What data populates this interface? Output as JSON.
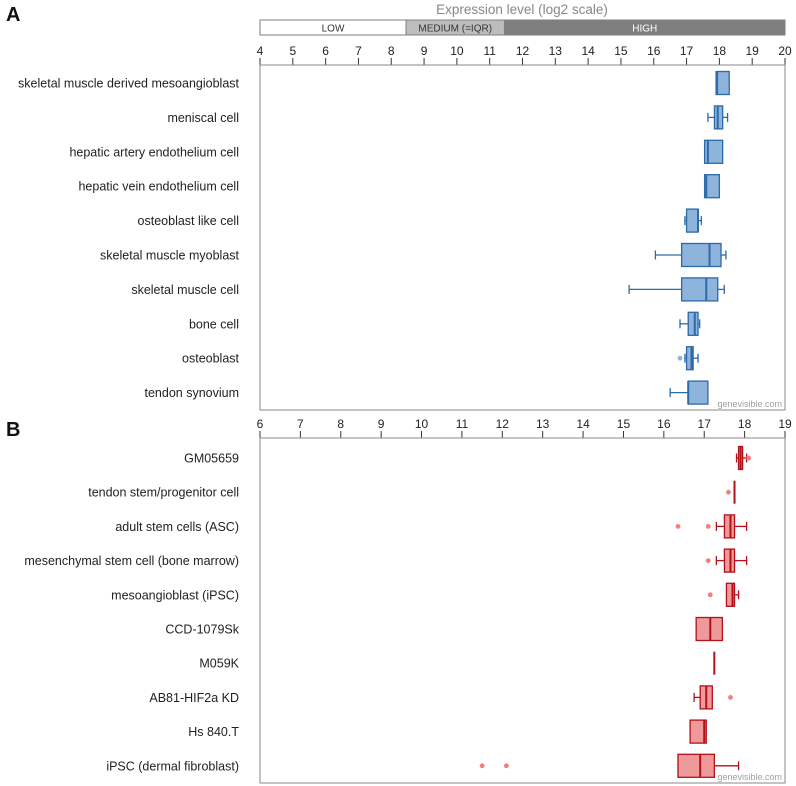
{
  "figure": {
    "watermark": "genevisible.com"
  },
  "colors": {
    "blue_fill": "#8fb4dc",
    "blue_line": "#2c6aa8",
    "red_fill": "#ef9a9a",
    "red_line": "#b3111a",
    "red_outlier": "#ef7f7f",
    "low_band": "#ffffff",
    "medium_band": "#bdbdbd",
    "high_band": "#7f7f7f"
  },
  "chart_data": [
    {
      "type": "boxplot",
      "panel_label": "A",
      "title": "Expression level (log2 scale)",
      "orientation": "horizontal",
      "xlim": [
        4,
        20
      ],
      "ticks": [
        4,
        5,
        6,
        7,
        8,
        9,
        10,
        11,
        12,
        13,
        14,
        15,
        16,
        17,
        18,
        19,
        20
      ],
      "level_bands": [
        {
          "label": "LOW",
          "from": 4,
          "to": 8.45
        },
        {
          "label": "MEDIUM (=IQR)",
          "from": 8.45,
          "to": 11.45
        },
        {
          "label": "HIGH",
          "from": 11.45,
          "to": 20
        }
      ],
      "categories": [
        "skeletal muscle derived mesoangioblast",
        "meniscal cell",
        "hepatic artery endothelium cell",
        "hepatic vein endothelium cell",
        "osteoblast like cell",
        "skeletal muscle myoblast",
        "skeletal muscle cell",
        "bone cell",
        "osteoblast",
        "tendon synovium"
      ],
      "boxes": [
        {
          "min": 17.9,
          "q1": 17.9,
          "median": 17.93,
          "q3": 18.3,
          "max": 18.3,
          "outliers": []
        },
        {
          "min": 17.65,
          "q1": 17.85,
          "median": 17.95,
          "q3": 18.1,
          "max": 18.25,
          "outliers": []
        },
        {
          "min": 17.55,
          "q1": 17.55,
          "median": 17.65,
          "q3": 18.1,
          "max": 18.1,
          "outliers": []
        },
        {
          "min": 17.55,
          "q1": 17.55,
          "median": 17.6,
          "q3": 18.0,
          "max": 18.0,
          "outliers": []
        },
        {
          "min": 16.95,
          "q1": 17.0,
          "median": 17.35,
          "q3": 17.35,
          "max": 17.45,
          "outliers": []
        },
        {
          "min": 16.05,
          "q1": 16.85,
          "median": 17.7,
          "q3": 18.05,
          "max": 18.2,
          "outliers": []
        },
        {
          "min": 15.25,
          "q1": 16.85,
          "median": 17.6,
          "q3": 17.95,
          "max": 18.15,
          "outliers": []
        },
        {
          "min": 16.8,
          "q1": 17.05,
          "median": 17.25,
          "q3": 17.35,
          "max": 17.4,
          "outliers": []
        },
        {
          "min": 16.95,
          "q1": 17.0,
          "median": 17.15,
          "q3": 17.2,
          "max": 17.35,
          "outliers": [
            16.8
          ]
        },
        {
          "min": 16.5,
          "q1": 17.05,
          "median": 17.05,
          "q3": 17.65,
          "max": 17.65,
          "outliers": []
        }
      ]
    },
    {
      "type": "boxplot",
      "panel_label": "B",
      "orientation": "horizontal",
      "xlim": [
        6,
        19
      ],
      "ticks": [
        6,
        7,
        8,
        9,
        10,
        11,
        12,
        13,
        14,
        15,
        16,
        17,
        18,
        19
      ],
      "categories": [
        "GM05659",
        "tendon stem/progenitor cell",
        "adult stem cells (ASC)",
        "mesenchymal stem cell (bone marrow)",
        "mesoangioblast (iPSC)",
        "CCD-1079Sk",
        "M059K",
        "AB81-HIF2a KD",
        "Hs 840.T",
        "iPSC (dermal fibroblast)"
      ],
      "boxes": [
        {
          "min": 17.8,
          "q1": 17.85,
          "median": 17.9,
          "q3": 17.95,
          "max": 18.05,
          "outliers": [
            18.1
          ]
        },
        {
          "min": 17.75,
          "q1": 17.75,
          "median": 17.75,
          "q3": 17.75,
          "max": 17.75,
          "outliers": [
            17.6
          ]
        },
        {
          "min": 17.3,
          "q1": 17.5,
          "median": 17.65,
          "q3": 17.75,
          "max": 18.05,
          "outliers": [
            16.35,
            17.1
          ]
        },
        {
          "min": 17.3,
          "q1": 17.5,
          "median": 17.65,
          "q3": 17.75,
          "max": 18.05,
          "outliers": [
            17.1
          ]
        },
        {
          "min": 17.55,
          "q1": 17.55,
          "median": 17.7,
          "q3": 17.75,
          "max": 17.85,
          "outliers": [
            17.15
          ]
        },
        {
          "min": 16.8,
          "q1": 16.8,
          "median": 17.15,
          "q3": 17.45,
          "max": 17.45,
          "outliers": []
        },
        {
          "min": 17.25,
          "q1": 17.25,
          "median": 17.25,
          "q3": 17.25,
          "max": 17.25,
          "outliers": []
        },
        {
          "min": 16.75,
          "q1": 16.9,
          "median": 17.05,
          "q3": 17.2,
          "max": 17.2,
          "outliers": [
            17.65
          ]
        },
        {
          "min": 16.65,
          "q1": 16.65,
          "median": 17.0,
          "q3": 17.05,
          "max": 17.05,
          "outliers": []
        },
        {
          "min": 16.35,
          "q1": 16.35,
          "median": 16.9,
          "q3": 17.25,
          "max": 17.85,
          "outliers": [
            11.5,
            12.1
          ]
        }
      ]
    }
  ]
}
